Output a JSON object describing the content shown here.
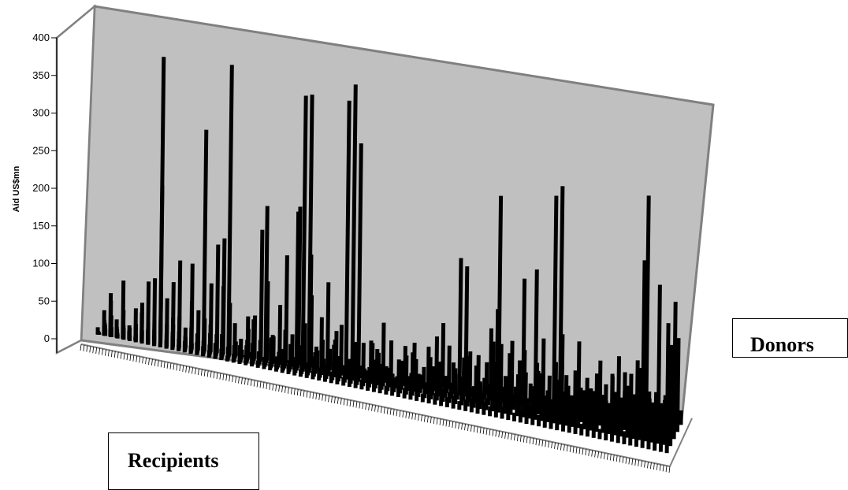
{
  "chart_data": {
    "type": "bar",
    "subtype": "3d-bar-grid",
    "xlabel": "Recipients",
    "zlabel": "Donors",
    "ylabel": "Aid US$mn",
    "ylim": [
      0,
      400
    ],
    "yticks": [
      0,
      50,
      100,
      150,
      200,
      250,
      300,
      350,
      400
    ],
    "colors": {
      "wall": "#c0c0c0",
      "bars": "#000000",
      "edge": "#808080"
    },
    "series": [
      {
        "values": [
          10,
          35,
          60,
          25,
          80,
          12,
          5,
          40,
          18,
          90,
          220,
          65,
          30,
          120,
          15,
          8,
          55,
          45,
          95,
          150,
          160,
          72,
          20,
          10,
          40,
          60,
          180,
          110,
          35,
          80,
          150,
          42,
          220,
          60,
          100,
          25,
          15,
          30,
          56,
          10,
          20,
          45,
          12,
          8,
          5,
          20,
          18,
          9,
          30,
          50,
          14,
          6,
          25,
          40,
          70,
          90,
          60,
          30,
          20,
          10,
          5,
          15,
          45,
          75,
          50,
          30,
          80,
          35,
          70,
          25,
          55,
          90,
          40,
          60,
          100,
          30,
          15,
          30,
          45,
          28,
          18,
          40,
          56,
          22,
          35,
          60,
          80,
          65,
          25,
          40,
          26,
          18,
          30,
          20
        ]
      },
      {
        "values": [
          5,
          22,
          50,
          15,
          35,
          20,
          45,
          30,
          85,
          20,
          60,
          30,
          90,
          44,
          30,
          120,
          25,
          15,
          40,
          28,
          96,
          50,
          20,
          10,
          60,
          12,
          30,
          25,
          40,
          18,
          50,
          8,
          20,
          30,
          160,
          34,
          45,
          28,
          48,
          70,
          20,
          33,
          18,
          6,
          52,
          40,
          8,
          60,
          12,
          30,
          15,
          40,
          20,
          60,
          14,
          42,
          22,
          44,
          190,
          180,
          14,
          60,
          30,
          100,
          128,
          22,
          70,
          25,
          16,
          12,
          30,
          48,
          20,
          14,
          45,
          22,
          26,
          30,
          36,
          40,
          62,
          34,
          24,
          16,
          30,
          22,
          42,
          80,
          26,
          35,
          20,
          48,
          32,
          130
        ]
      },
      {
        "values": [
          3,
          18,
          25,
          12,
          40,
          10,
          20,
          55,
          22,
          35,
          400,
          18,
          42,
          25,
          20,
          70,
          15,
          310,
          30,
          12,
          14,
          406,
          50,
          30,
          30,
          60,
          8,
          220,
          40,
          12,
          25,
          35,
          220,
          382,
          385,
          30,
          80,
          130,
          45,
          20,
          386,
          410,
          330,
          20,
          60,
          50,
          88,
          25,
          15,
          40,
          20,
          68,
          24,
          12,
          40,
          48,
          30,
          22,
          12,
          60,
          70,
          52,
          18,
          30,
          62,
          88,
          40,
          22,
          70,
          55,
          30,
          60,
          18,
          24,
          48,
          38,
          20,
          70,
          24,
          44,
          40,
          90,
          36,
          28,
          44,
          80,
          16,
          30,
          128,
          50,
          30,
          40,
          22,
          190
        ]
      },
      {
        "values": [
          4,
          15,
          30,
          8,
          20,
          18,
          25,
          14,
          30,
          12,
          9,
          20,
          24,
          16,
          14,
          35,
          28,
          20,
          16,
          12,
          34,
          18,
          22,
          14,
          25,
          30,
          20,
          14,
          42,
          18,
          30,
          16,
          22,
          40,
          18,
          28,
          14,
          20,
          12,
          35,
          24,
          30,
          15,
          60,
          28,
          40,
          18,
          32,
          20,
          26,
          54,
          60,
          32,
          22,
          40,
          30,
          18,
          15,
          42,
          26,
          70,
          30,
          38,
          16,
          28,
          300,
          34,
          22,
          24,
          192,
          18,
          208,
          66,
          44,
          315,
          330,
          70,
          40,
          120,
          44,
          58,
          22,
          48,
          30,
          60,
          54,
          72,
          56,
          80,
          340,
          30,
          220,
          62,
          140
        ]
      },
      {
        "values": [
          2,
          10,
          14,
          6,
          16,
          8,
          12,
          18,
          10,
          14,
          6,
          12,
          20,
          9,
          16,
          12,
          18,
          14,
          10,
          22,
          16,
          8,
          12,
          26,
          14,
          20,
          10,
          16,
          12,
          18,
          24,
          14,
          20,
          10,
          16,
          12,
          18,
          22,
          14,
          30,
          12,
          16,
          20,
          14,
          18,
          24,
          16,
          12,
          30,
          20,
          14,
          26,
          18,
          12,
          22,
          16,
          20,
          14,
          18,
          12,
          16,
          20,
          24,
          18,
          14,
          22,
          16,
          20,
          12,
          18,
          24,
          20,
          16,
          22,
          30,
          40,
          18,
          24,
          30,
          16,
          22,
          28,
          14,
          26,
          90,
          120,
          18,
          40,
          22,
          260,
          80,
          30,
          60,
          180
        ]
      }
    ]
  },
  "labels": {
    "donors": "Donors",
    "recipients": "Recipients",
    "yaxis": "Aid US$mn"
  }
}
